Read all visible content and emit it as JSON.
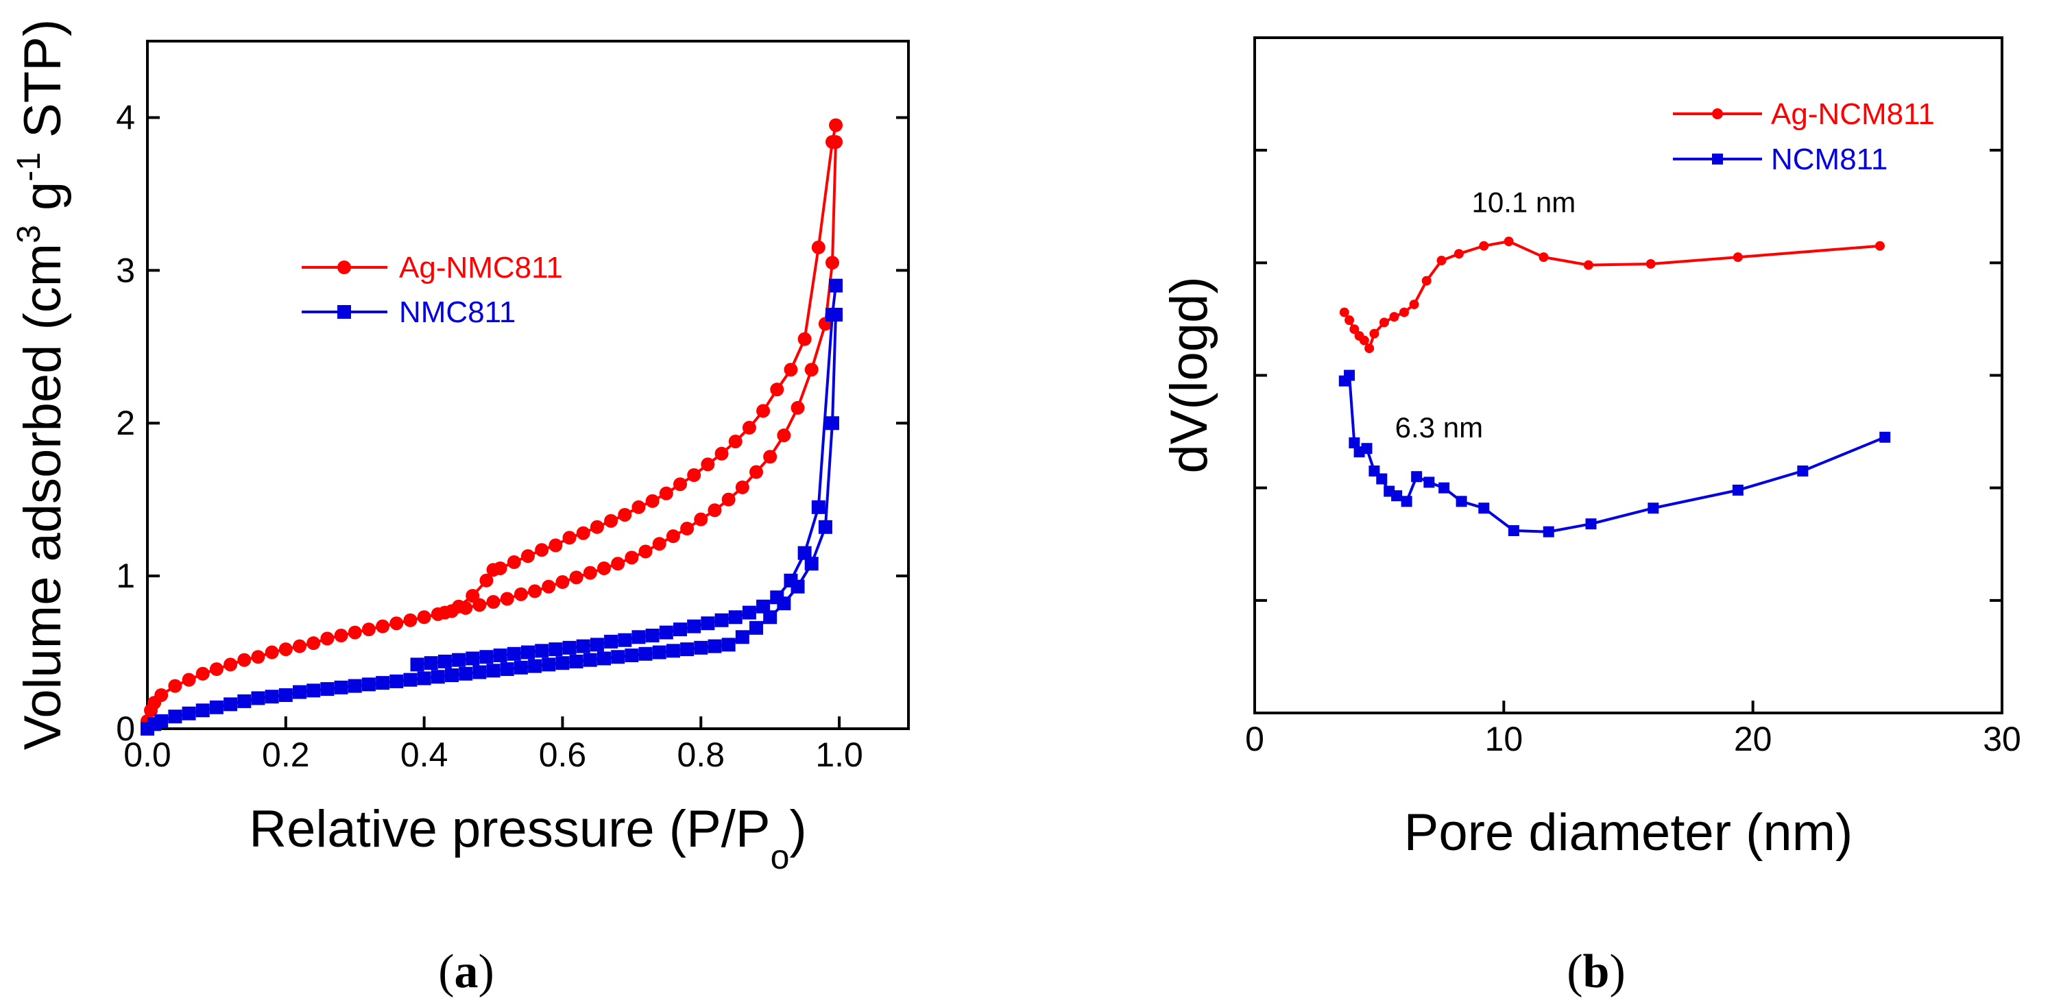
{
  "colors": {
    "red": "#ff0000",
    "blue": "#0000e0",
    "axis": "#000000"
  },
  "chart_data": [
    {
      "type": "line",
      "panel_label": "a",
      "xlabel": "Relative pressure (P/P",
      "xlabel_sub": "o",
      "xlabel_close": ")",
      "ylabel": "Volume adsorbed (cm",
      "ylabel_sup1": "3",
      "ylabel_mid": " g",
      "ylabel_sup2": "-1",
      "ylabel_end": " STP)",
      "xlim": [
        0.0,
        1.1
      ],
      "ylim": [
        0.0,
        4.5
      ],
      "xticks": [
        0.0,
        0.2,
        0.4,
        0.6,
        0.8,
        1.0
      ],
      "xtick_labels": [
        "0.0",
        "0.2",
        "0.4",
        "0.6",
        "0.8",
        "1.0"
      ],
      "yticks": [
        0,
        1,
        2,
        3,
        4
      ],
      "ytick_labels": [
        "0",
        "1",
        "2",
        "3",
        "4"
      ],
      "legend": "upper-left",
      "series": [
        {
          "name": "Ag-NMC811",
          "color": "#ff0000",
          "marker": "circle",
          "branches": [
            {
              "label": "adsorption",
              "x": [
                0.0,
                0.005,
                0.01,
                0.02,
                0.04,
                0.06,
                0.08,
                0.1,
                0.12,
                0.14,
                0.16,
                0.18,
                0.2,
                0.22,
                0.24,
                0.26,
                0.28,
                0.3,
                0.32,
                0.34,
                0.36,
                0.38,
                0.4,
                0.42,
                0.44,
                0.46,
                0.48,
                0.5,
                0.52,
                0.54,
                0.56,
                0.58,
                0.6,
                0.62,
                0.64,
                0.66,
                0.68,
                0.7,
                0.72,
                0.74,
                0.76,
                0.78,
                0.8,
                0.82,
                0.84,
                0.86,
                0.88,
                0.9,
                0.92,
                0.94,
                0.96,
                0.98,
                0.99,
                0.995
              ],
              "y": [
                0.05,
                0.12,
                0.17,
                0.22,
                0.28,
                0.32,
                0.36,
                0.39,
                0.42,
                0.45,
                0.47,
                0.5,
                0.52,
                0.54,
                0.56,
                0.59,
                0.61,
                0.63,
                0.65,
                0.67,
                0.69,
                0.71,
                0.73,
                0.75,
                0.77,
                0.79,
                0.81,
                0.83,
                0.85,
                0.88,
                0.9,
                0.93,
                0.96,
                0.99,
                1.02,
                1.05,
                1.08,
                1.12,
                1.16,
                1.21,
                1.26,
                1.31,
                1.37,
                1.43,
                1.5,
                1.58,
                1.68,
                1.78,
                1.92,
                2.1,
                2.35,
                2.65,
                3.05,
                3.84
              ]
            },
            {
              "label": "desorption",
              "x": [
                0.995,
                0.99,
                0.97,
                0.95,
                0.93,
                0.91,
                0.89,
                0.87,
                0.85,
                0.83,
                0.81,
                0.79,
                0.77,
                0.75,
                0.73,
                0.71,
                0.69,
                0.67,
                0.65,
                0.63,
                0.61,
                0.59,
                0.57,
                0.55,
                0.53,
                0.51,
                0.5,
                0.49,
                0.47,
                0.45,
                0.43
              ],
              "y": [
                3.95,
                3.84,
                3.15,
                2.55,
                2.35,
                2.22,
                2.08,
                1.97,
                1.88,
                1.8,
                1.73,
                1.66,
                1.6,
                1.54,
                1.49,
                1.45,
                1.4,
                1.36,
                1.32,
                1.28,
                1.25,
                1.2,
                1.17,
                1.13,
                1.09,
                1.05,
                1.04,
                0.97,
                0.87,
                0.8,
                0.76
              ]
            }
          ]
        },
        {
          "name": "NMC811",
          "color": "#0000e0",
          "marker": "square",
          "branches": [
            {
              "label": "adsorption",
              "x": [
                0.0,
                0.01,
                0.02,
                0.04,
                0.06,
                0.08,
                0.1,
                0.12,
                0.14,
                0.16,
                0.18,
                0.2,
                0.22,
                0.24,
                0.26,
                0.28,
                0.3,
                0.32,
                0.34,
                0.36,
                0.38,
                0.4,
                0.42,
                0.44,
                0.46,
                0.48,
                0.5,
                0.52,
                0.54,
                0.56,
                0.58,
                0.6,
                0.62,
                0.64,
                0.66,
                0.68,
                0.7,
                0.72,
                0.74,
                0.76,
                0.78,
                0.8,
                0.82,
                0.84,
                0.86,
                0.88,
                0.9,
                0.92,
                0.94,
                0.96,
                0.98,
                0.99,
                0.995
              ],
              "y": [
                0.0,
                0.03,
                0.05,
                0.08,
                0.1,
                0.12,
                0.14,
                0.16,
                0.18,
                0.2,
                0.21,
                0.22,
                0.24,
                0.25,
                0.26,
                0.27,
                0.28,
                0.29,
                0.3,
                0.31,
                0.32,
                0.33,
                0.34,
                0.35,
                0.36,
                0.37,
                0.38,
                0.39,
                0.4,
                0.41,
                0.42,
                0.43,
                0.44,
                0.45,
                0.46,
                0.47,
                0.48,
                0.49,
                0.5,
                0.51,
                0.52,
                0.53,
                0.54,
                0.55,
                0.6,
                0.66,
                0.73,
                0.82,
                0.93,
                1.08,
                1.32,
                2.0,
                2.71
              ]
            },
            {
              "label": "desorption",
              "x": [
                0.995,
                0.99,
                0.97,
                0.95,
                0.93,
                0.91,
                0.89,
                0.87,
                0.85,
                0.83,
                0.81,
                0.79,
                0.77,
                0.75,
                0.73,
                0.71,
                0.69,
                0.67,
                0.65,
                0.63,
                0.61,
                0.59,
                0.57,
                0.55,
                0.53,
                0.51,
                0.49,
                0.47,
                0.45,
                0.43,
                0.41,
                0.39
              ],
              "y": [
                2.9,
                2.71,
                1.45,
                1.15,
                0.97,
                0.86,
                0.8,
                0.76,
                0.73,
                0.71,
                0.69,
                0.67,
                0.65,
                0.63,
                0.61,
                0.6,
                0.58,
                0.57,
                0.55,
                0.54,
                0.53,
                0.52,
                0.51,
                0.5,
                0.49,
                0.48,
                0.47,
                0.46,
                0.45,
                0.44,
                0.43,
                0.42
              ]
            }
          ]
        }
      ]
    },
    {
      "type": "line",
      "panel_label": "b",
      "xlabel": "Pore diameter (nm)",
      "ylabel": "dV(logd)",
      "xlim": [
        0,
        30
      ],
      "ylim": [
        0,
        6
      ],
      "xticks": [
        0,
        10,
        20,
        30
      ],
      "xtick_labels": [
        "0",
        "10",
        "20",
        "30"
      ],
      "yticks": [
        1,
        2,
        3,
        4,
        5
      ],
      "ytick_labels": [],
      "legend": "top-right",
      "series": [
        {
          "name": "Ag-NCM811",
          "color": "#ff0000",
          "marker": "circle",
          "x": [
            3.6,
            3.8,
            4.0,
            4.2,
            4.4,
            4.6,
            4.8,
            5.2,
            5.6,
            6.0,
            6.4,
            6.9,
            7.5,
            8.2,
            9.2,
            10.2,
            11.6,
            13.4,
            15.9,
            19.4,
            25.1
          ],
          "y": [
            3.56,
            3.49,
            3.41,
            3.35,
            3.31,
            3.24,
            3.37,
            3.47,
            3.52,
            3.56,
            3.63,
            3.84,
            4.02,
            4.08,
            4.15,
            4.19,
            4.05,
            3.98,
            3.99,
            4.05,
            4.15
          ]
        },
        {
          "name": "NCM811",
          "color": "#0000e0",
          "marker": "square",
          "x": [
            3.6,
            3.8,
            4.0,
            4.2,
            4.5,
            4.8,
            5.1,
            5.4,
            5.7,
            6.1,
            6.5,
            7.0,
            7.6,
            8.3,
            9.2,
            10.4,
            11.8,
            13.5,
            16.0,
            19.4,
            22.0,
            25.3
          ],
          "y": [
            2.95,
            3.0,
            2.4,
            2.32,
            2.35,
            2.15,
            2.08,
            1.97,
            1.93,
            1.88,
            2.1,
            2.05,
            2.0,
            1.88,
            1.82,
            1.62,
            1.61,
            1.68,
            1.82,
            1.98,
            2.15,
            2.45
          ]
        }
      ],
      "annotations": [
        {
          "text": "10.1 nm",
          "x": 10.8,
          "y": 4.45
        },
        {
          "text": "6.3 nm",
          "x": 7.4,
          "y": 2.45
        }
      ]
    }
  ]
}
